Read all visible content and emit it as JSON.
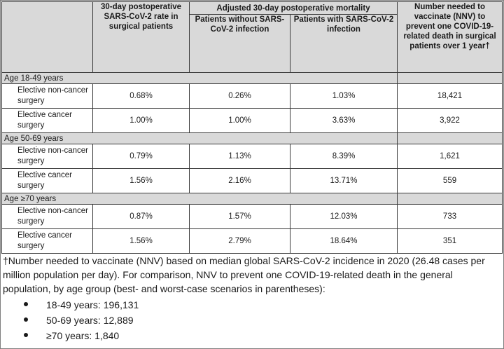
{
  "headers": {
    "col1": "30-day postoperative SARS-CoV-2 rate in surgical patients",
    "mortality_group": "Adjusted 30-day postoperative mortality",
    "col2": "Patients without SARS-CoV-2 infection",
    "col3": "Patients with SARS-CoV-2 infection",
    "col4": "Number needed to vaccinate (NNV) to prevent one COVID-19-related death in surgical patients over 1 year†"
  },
  "groups": [
    {
      "label": "Age 18-49 years",
      "rows": [
        {
          "label": "Elective non-cancer surgery",
          "rate": "0.68%",
          "without": "0.26%",
          "with": "1.03%",
          "nnv": "18,421"
        },
        {
          "label": "Elective cancer surgery",
          "rate": "1.00%",
          "without": "1.00%",
          "with": "3.63%",
          "nnv": "3,922"
        }
      ]
    },
    {
      "label": "Age 50-69 years",
      "rows": [
        {
          "label": "Elective non-cancer surgery",
          "rate": "0.79%",
          "without": "1.13%",
          "with": "8.39%",
          "nnv": "1,621"
        },
        {
          "label": "Elective cancer surgery",
          "rate": "1.56%",
          "without": "2.16%",
          "with": "13.71%",
          "nnv": "559"
        }
      ]
    },
    {
      "label": "Age ≥70 years",
      "rows": [
        {
          "label": "Elective non-cancer surgery",
          "rate": "0.87%",
          "without": "1.57%",
          "with": "12.03%",
          "nnv": "733"
        },
        {
          "label": "Elective cancer surgery",
          "rate": "1.56%",
          "without": "2.79%",
          "with": "18.64%",
          "nnv": "351"
        }
      ]
    }
  ],
  "footnote": {
    "text": "†Number needed to vaccinate (NNV) based on median global SARS-CoV-2 incidence in 2020 (26.48 cases per million population per day). For comparison, NNV to prevent one COVID-19-related death in the general population, by age group (best- and worst-case scenarios in parentheses):",
    "bullets": [
      "18-49 years: 196,131",
      "50-69 years: 12,889",
      "≥70 years: 1,840"
    ]
  },
  "colors": {
    "header_bg": "#d9d9d9",
    "border": "#3a3a3a"
  }
}
